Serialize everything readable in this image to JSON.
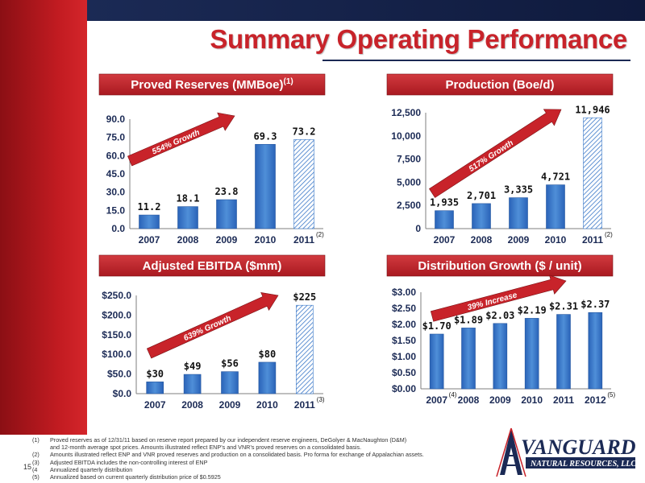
{
  "title": "Summary Operating Performance",
  "page_number": "15",
  "brand_colors": {
    "red": "#c8232a",
    "navy": "#1b2a55",
    "bar_blue": "#3a78c8"
  },
  "logo": {
    "line1": "VANGUARD",
    "line2": "NATURAL RESOURCES, LLC"
  },
  "footnotes": [
    {
      "num": "(1)",
      "text": "Proved reserves as of 12/31/11 based on reserve report prepared by our independent reserve engineers, DeGolyer & MacNaughton (D&M)"
    },
    {
      "num": "",
      "text": "and 12-month average spot prices. Amounts illustrated reflect ENP’s and VNR’s proved reserves on a consolidated basis."
    },
    {
      "num": "(2)",
      "text": "Amounts illustrated reflect ENP and VNR proved reserves and production on a consolidated basis. Pro forma for exchange of Appalachian assets."
    },
    {
      "num": "(3)",
      "text": "Adjusted EBITDA includes the non-controlling interest of ENP"
    },
    {
      "num": "(4",
      "text": "Annualized quarterly distribution"
    },
    {
      "num": "(5)",
      "text": "Annualized based on current quarterly distribution price of $0.5925"
    }
  ],
  "chart_data": [
    {
      "type": "bar",
      "title": "Proved Reserves (MMBoe)",
      "title_note": "(1)",
      "categories": [
        "2007",
        "2008",
        "2009",
        "2010",
        "2011"
      ],
      "values": [
        11.2,
        18.1,
        23.8,
        69.3,
        73.2
      ],
      "value_labels": [
        "11.2",
        "18.1",
        "23.8",
        "69.3",
        "73.2"
      ],
      "yticks": [
        "0.0",
        "15.0",
        "30.0",
        "45.0",
        "60.0",
        "75.0",
        "90.0"
      ],
      "ylim": [
        0,
        90
      ],
      "hatched_index": 4,
      "category_note": "(2)",
      "growth_label": "554% Growth",
      "legend": "none",
      "grid": false
    },
    {
      "type": "bar",
      "title": "Production (Boe/d)",
      "categories": [
        "2007",
        "2008",
        "2009",
        "2010",
        "2011"
      ],
      "values": [
        1935,
        2701,
        3335,
        4721,
        11946
      ],
      "value_labels": [
        "1,935",
        "2,701",
        "3,335",
        "4,721",
        "11,946"
      ],
      "yticks": [
        "0",
        "2,500",
        "5,000",
        "7,500",
        "10,000",
        "12,500"
      ],
      "ylim": [
        0,
        12500
      ],
      "hatched_index": 4,
      "category_note": "(2)",
      "growth_label": "517% Growth",
      "legend": "none",
      "grid": false
    },
    {
      "type": "bar",
      "title": "Adjusted EBITDA ($mm)",
      "categories": [
        "2007",
        "2008",
        "2009",
        "2010",
        "2011"
      ],
      "values": [
        30,
        49,
        56,
        80,
        225
      ],
      "value_labels": [
        "$30",
        "$49",
        "$56",
        "$80",
        "$225"
      ],
      "yticks": [
        "$0.0",
        "$50.0",
        "$100.0",
        "$150.0",
        "$200.0",
        "$250.0"
      ],
      "ylim": [
        0,
        250
      ],
      "hatched_index": 4,
      "category_note": "(3)",
      "growth_label": "639% Growth",
      "legend": "none",
      "grid": false
    },
    {
      "type": "bar",
      "title": "Distribution Growth ($ / unit)",
      "categories": [
        "2007",
        "2008",
        "2009",
        "2010",
        "2011",
        "2012"
      ],
      "category_notes": [
        "(4)",
        "",
        "",
        "",
        "",
        "(5)"
      ],
      "values": [
        1.7,
        1.89,
        2.03,
        2.19,
        2.31,
        2.37
      ],
      "value_labels": [
        "$1.70",
        "$1.89",
        "$2.03",
        "$2.19",
        "$2.31",
        "$2.37"
      ],
      "yticks": [
        "$0.00",
        "$0.50",
        "$1.00",
        "$1.50",
        "$2.00",
        "$2.50",
        "$3.00"
      ],
      "ylim": [
        0,
        3
      ],
      "hatched_index": -1,
      "growth_label": "39% Increase",
      "legend": "none",
      "grid": false
    }
  ]
}
